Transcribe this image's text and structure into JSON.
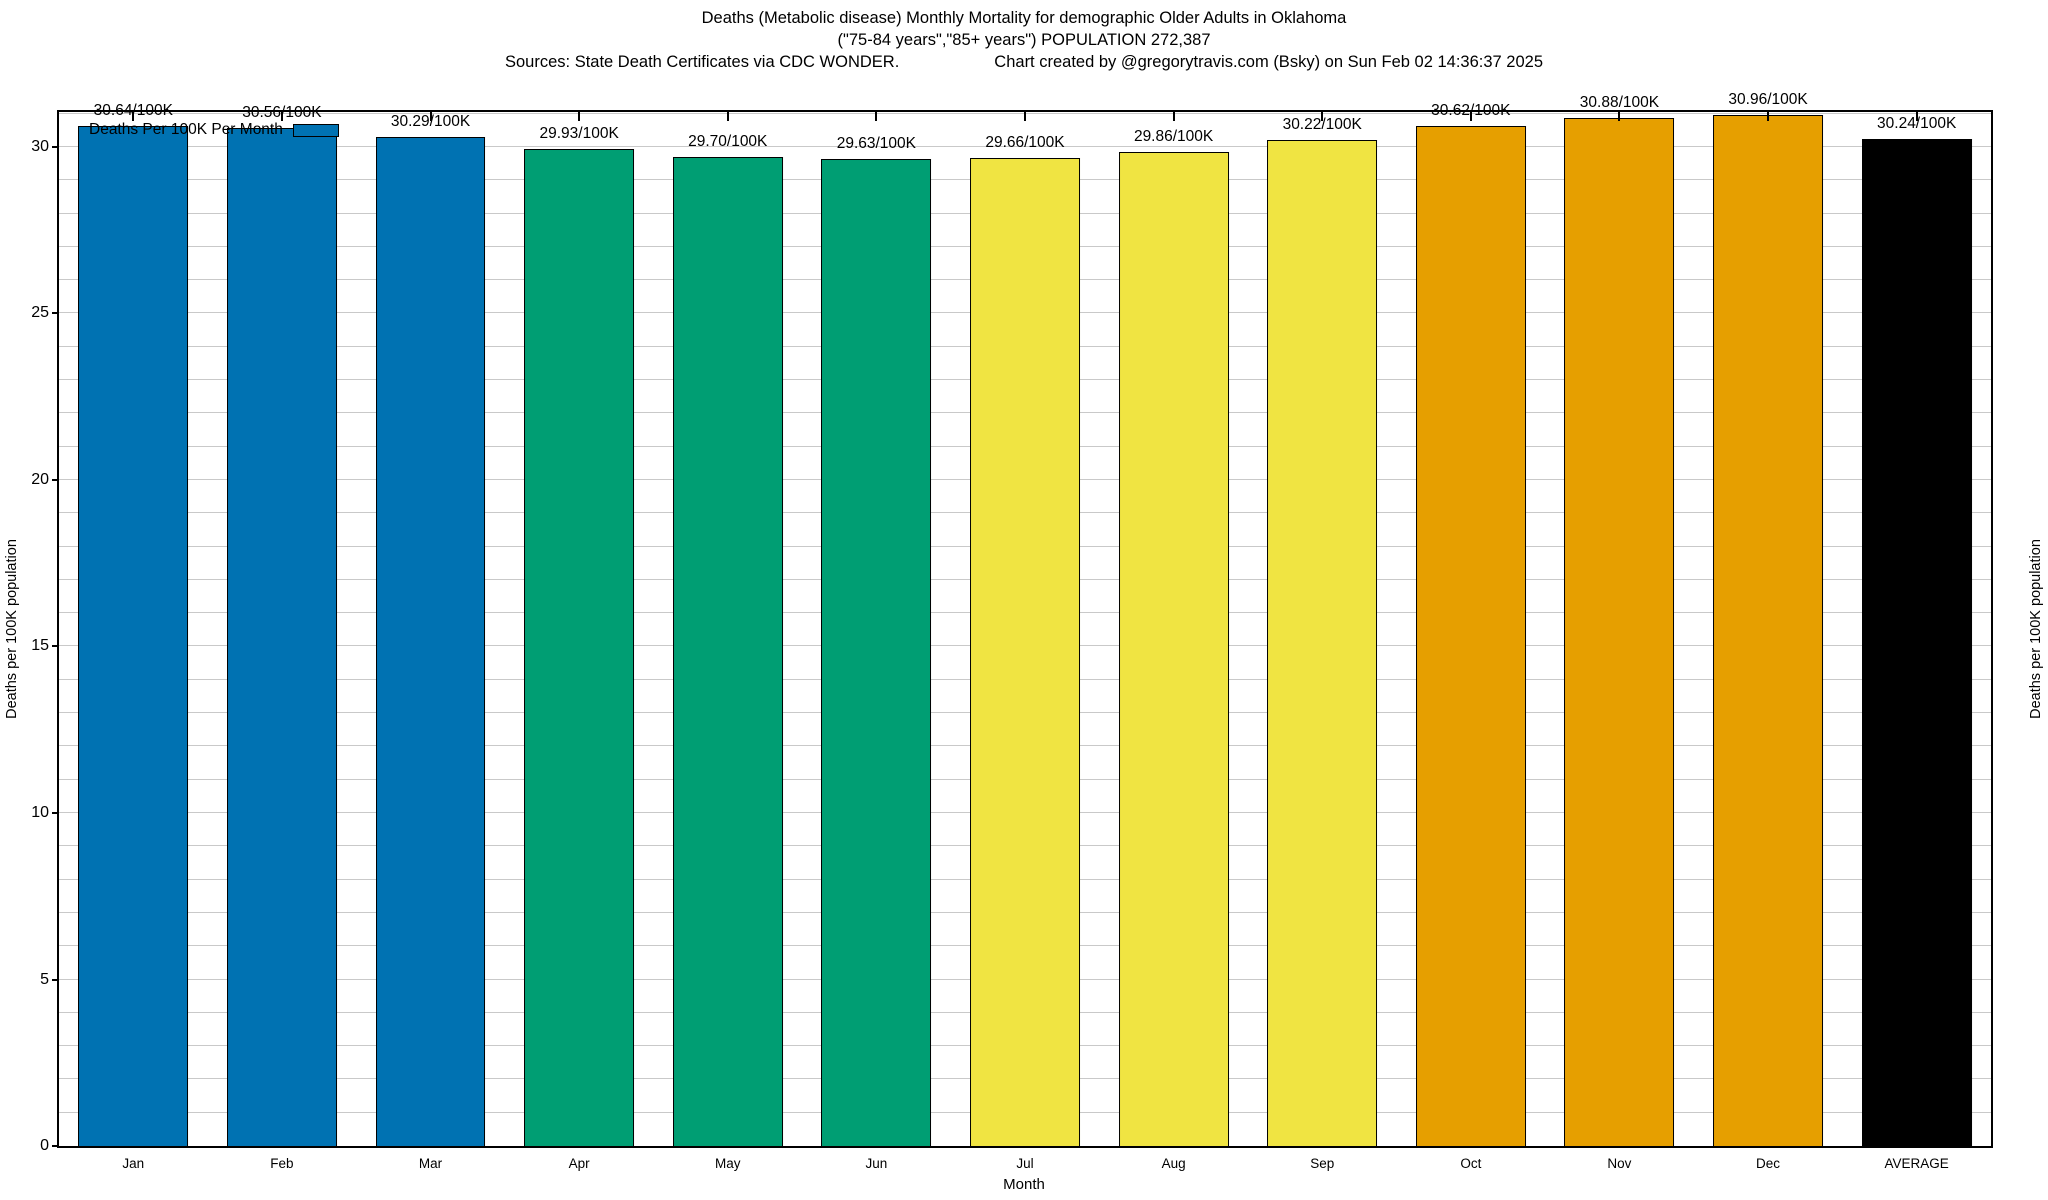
{
  "title": {
    "line1": "Deaths (Metabolic disease) Monthly Mortality for demographic Older Adults in Oklahoma",
    "line2": "(\"75-84 years\",\"85+ years\") POPULATION 272,387",
    "line3_left": "Sources: State Death Certificates via CDC WONDER.",
    "line3_right": "Chart created by @gregorytravis.com (Bsky) on Sun Feb 02 14:36:37 2025"
  },
  "legend": {
    "label": "Deaths Per 100K Per Month",
    "swatch_color": "#0072B2"
  },
  "axes": {
    "y_left_label": "Deaths per 100K population",
    "y_right_label": "Deaths per 100K population",
    "x_label": "Month"
  },
  "colors": {
    "winter_blue": "#0072B2",
    "spring_green": "#009E73",
    "summer_yellow": "#F0E442",
    "fall_orange": "#E69F00",
    "average_black": "#000000",
    "gridline": "#c9c9c9"
  },
  "chart_data": {
    "type": "bar",
    "title": "Deaths (Metabolic disease) Monthly Mortality for demographic Older Adults in Oklahoma",
    "xlabel": "Month",
    "ylabel": "Deaths per 100K population",
    "ylim": [
      0,
      31.05
    ],
    "yticks_major": [
      0,
      5,
      10,
      15,
      20,
      25,
      30
    ],
    "minor_grid_step": 1,
    "grid": "on",
    "legend_position": "top-left-inside",
    "categories": [
      "Jan",
      "Feb",
      "Mar",
      "Apr",
      "May",
      "Jun",
      "Jul",
      "Aug",
      "Sep",
      "Oct",
      "Nov",
      "Dec",
      "AVERAGE"
    ],
    "values": [
      30.64,
      30.56,
      30.29,
      29.93,
      29.7,
      29.63,
      29.66,
      29.86,
      30.22,
      30.62,
      30.88,
      30.96,
      30.24
    ],
    "bar_labels": [
      "30.64/100K",
      "30.56/100K",
      "30.29/100K",
      "29.93/100K",
      "29.70/100K",
      "29.63/100K",
      "29.66/100K",
      "29.86/100K",
      "30.22/100K",
      "30.62/100K",
      "30.88/100K",
      "30.96/100K",
      "30.24/100K"
    ],
    "bar_colors": [
      "#0072B2",
      "#0072B2",
      "#0072B2",
      "#009E73",
      "#009E73",
      "#009E73",
      "#F0E442",
      "#F0E442",
      "#F0E442",
      "#E69F00",
      "#E69F00",
      "#E69F00",
      "#000000"
    ]
  }
}
